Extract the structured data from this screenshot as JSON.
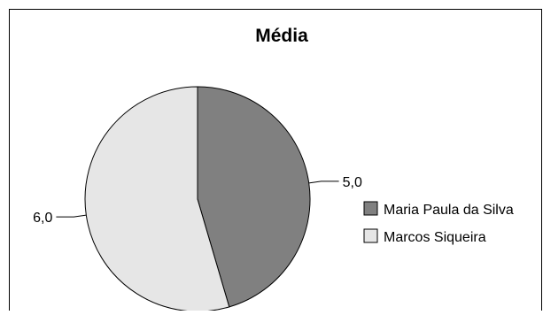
{
  "chart_data": {
    "type": "pie",
    "title": "Média",
    "categories": [
      "Maria Paula da Silva",
      "Marcos Siqueira"
    ],
    "values": [
      5.0,
      6.0
    ],
    "data_labels": [
      "5,0",
      "6,0"
    ],
    "colors": [
      "#808080",
      "#e6e6e6"
    ],
    "legend": {
      "position": "right"
    },
    "start_angle": "12 o'clock",
    "direction": "clockwise"
  }
}
